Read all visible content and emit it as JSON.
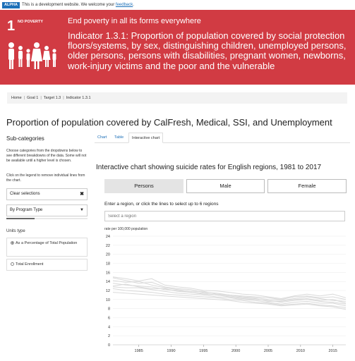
{
  "alpha_banner": {
    "tag": "ALPHA",
    "text": "This is a development website. We welcome your",
    "link": "feedback",
    "end": "."
  },
  "goal": {
    "number": "1",
    "short_name": "NO POVERTY",
    "title": "End poverty in all its forms everywhere",
    "indicator": "Indicator 1.3.1: Proportion of population covered by social protection floors/systems, by sex, distinguishing children, unemployed persons, older persons, persons with disabilities, pregnant women, newborns, work-injury victims and the poor and the vulnerable",
    "color": "#d13b43"
  },
  "breadcrumb": [
    "Home",
    "Goal 1",
    "Target 1.3",
    "Indicator 1.3.1"
  ],
  "page_title": "Proportion of population covered by CalFresh, Medical, SSI, and Unemployment",
  "sidebar": {
    "heading": "Sub-categories",
    "help_text": "Choose categories from the dropdowns below to see different breakdowns of the data. Some will not be available until a higher level is chosen.",
    "help_text2": "Click on the legend to remove individual lines from the chart.",
    "clear_label": "Clear selections",
    "clear_icon": "close-icon",
    "program_select": "By Program Type",
    "program_fill": 0.35,
    "units_label": "Units type",
    "units_options": [
      {
        "label": "As a Percentage of Total Population",
        "selected": true
      },
      {
        "label": "Total Enrollment",
        "selected": false
      }
    ]
  },
  "tabs": [
    {
      "label": "Chart",
      "active": false
    },
    {
      "label": "Table",
      "active": false
    },
    {
      "label": "Interactive chart",
      "active": true
    }
  ],
  "interactive": {
    "heading": "Interactive chart showing suicide rates for English regions, 1981 to 2017",
    "buttons": [
      {
        "label": "Persons",
        "active": true
      },
      {
        "label": "Male",
        "active": false
      },
      {
        "label": "Female",
        "active": false
      }
    ],
    "region_prompt": "Enter a region, or click the lines to select up to 6 regions",
    "region_placeholder": "Select a region"
  },
  "chart_data": {
    "type": "line",
    "ylabel": "rate per 100,000 population",
    "ylim": [
      0,
      24
    ],
    "yticks": [
      0,
      2,
      4,
      6,
      8,
      10,
      12,
      14,
      16,
      18,
      20,
      22,
      24
    ],
    "xlim": [
      1981,
      2017
    ],
    "xticks": [
      1985,
      1990,
      1995,
      2000,
      2005,
      2010,
      2015
    ],
    "grid": true,
    "line_color": "#d9d9d9",
    "x": [
      1981,
      1983,
      1985,
      1987,
      1989,
      1991,
      1993,
      1995,
      1997,
      1999,
      2001,
      2003,
      2005,
      2007,
      2009,
      2011,
      2013,
      2015,
      2017
    ],
    "series": [
      {
        "values": [
          15.0,
          14.6,
          14.1,
          14.6,
          13.2,
          12.8,
          12.5,
          12.0,
          11.9,
          11.6,
          11.2,
          11.0,
          10.6,
          10.2,
          10.8,
          11.2,
          10.8,
          11.2,
          10.4
        ]
      },
      {
        "values": [
          14.2,
          13.8,
          14.0,
          13.2,
          12.6,
          12.2,
          11.8,
          11.8,
          11.2,
          11.0,
          10.6,
          10.4,
          10.0,
          9.8,
          10.2,
          10.6,
          10.2,
          9.8,
          9.6
        ]
      },
      {
        "values": [
          13.6,
          13.2,
          13.0,
          12.8,
          12.2,
          12.0,
          11.6,
          11.2,
          11.0,
          10.6,
          10.2,
          10.0,
          9.8,
          9.4,
          9.8,
          10.0,
          9.6,
          9.4,
          9.0
        ]
      },
      {
        "values": [
          12.8,
          12.6,
          12.6,
          12.2,
          11.8,
          11.4,
          11.2,
          11.0,
          10.6,
          10.4,
          10.0,
          9.8,
          9.4,
          9.0,
          9.4,
          9.6,
          9.2,
          9.2,
          8.6
        ]
      },
      {
        "values": [
          12.4,
          12.0,
          11.8,
          11.6,
          11.2,
          11.0,
          10.8,
          10.6,
          10.4,
          10.0,
          9.8,
          9.4,
          9.2,
          8.8,
          9.0,
          9.2,
          8.8,
          8.6,
          8.2
        ]
      },
      {
        "values": [
          11.6,
          11.4,
          11.2,
          11.0,
          10.8,
          10.6,
          10.4,
          10.2,
          10.0,
          9.8,
          9.4,
          9.2,
          9.0,
          8.6,
          8.8,
          9.0,
          8.6,
          8.4,
          7.8
        ]
      },
      {
        "values": [
          14.8,
          14.2,
          13.6,
          13.8,
          12.8,
          12.4,
          12.2,
          11.6,
          11.4,
          11.0,
          10.8,
          10.6,
          10.4,
          10.0,
          10.6,
          10.8,
          10.4,
          10.6,
          10.0
        ]
      },
      {
        "values": [
          13.0,
          13.4,
          12.8,
          12.4,
          12.4,
          11.8,
          11.6,
          11.4,
          11.0,
          10.8,
          10.4,
          10.2,
          9.6,
          9.6,
          10.0,
          10.2,
          9.8,
          10.0,
          9.2
        ]
      }
    ]
  }
}
